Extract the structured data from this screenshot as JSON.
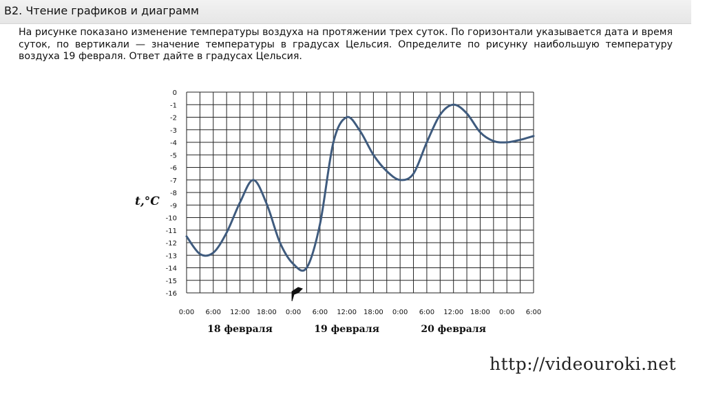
{
  "header": {
    "title": "B2. Чтение графиков и диаграмм"
  },
  "task": {
    "text": "На рисунке показано изменение температуры воздуха на протяжении трех суток. По горизонтали указывается дата и время суток, по вертикали — значение температуры в градусах Цельсия. Определите по рисунку наибольшую температуру воздуха 19 февраля. Ответ дайте в градусах Цельсия."
  },
  "watermark": {
    "text": "http://videouroki.net"
  },
  "chart_data": {
    "type": "line",
    "ylabel": "t,°C",
    "ylim": [
      -16,
      0
    ],
    "yticks": [
      "0",
      "-1",
      "-2",
      "-3",
      "-4",
      "-5",
      "-6",
      "-7",
      "-8",
      "-9",
      "-10",
      "-11",
      "-12",
      "-13",
      "-14",
      "-15",
      "-16"
    ],
    "xlim": [
      0,
      78
    ],
    "xticks": [
      "0:00",
      "6:00",
      "12:00",
      "18:00",
      "0:00",
      "6:00",
      "12:00",
      "18:00",
      "0:00",
      "6:00",
      "12:00",
      "18:00",
      "0:00",
      "6:00"
    ],
    "date_labels": [
      "18 февраля",
      "19 февраля",
      "20 февраля"
    ],
    "grid": true,
    "series": [
      {
        "color": "#3f5b7e",
        "x": [
          0,
          3,
          6,
          9,
          12,
          15,
          18,
          21,
          24,
          27,
          30,
          33,
          36,
          39,
          42,
          45,
          48,
          51,
          54,
          57,
          60,
          63,
          66,
          69,
          72,
          75,
          78
        ],
        "y": [
          -11.5,
          -12.9,
          -12.8,
          -11.2,
          -8.8,
          -7.0,
          -8.9,
          -12.0,
          -13.7,
          -14.0,
          -10.5,
          -4.0,
          -2.0,
          -3.1,
          -5.0,
          -6.3,
          -7.0,
          -6.5,
          -4.0,
          -1.8,
          -1.0,
          -1.7,
          -3.2,
          -3.9,
          -4.0,
          -3.8,
          -3.5
        ]
      }
    ]
  }
}
